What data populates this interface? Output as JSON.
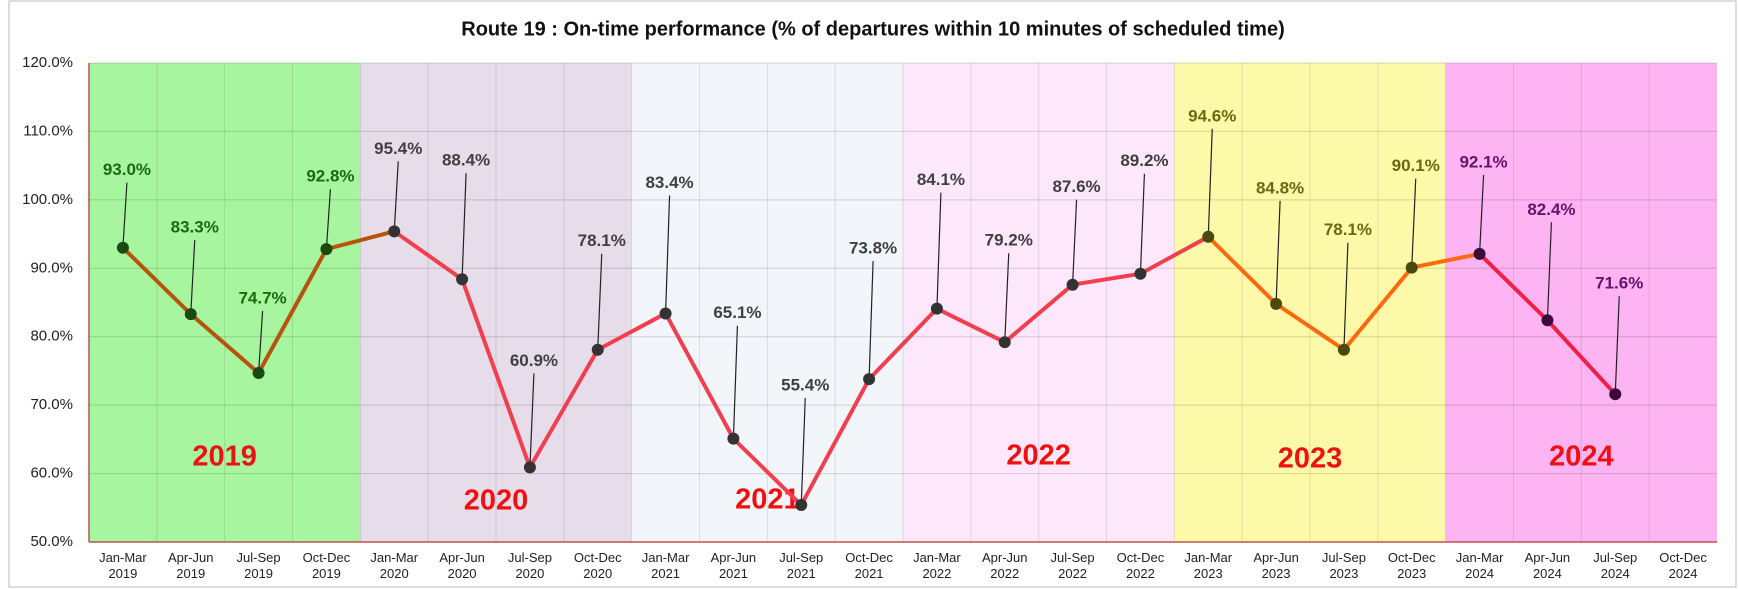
{
  "chart_data": {
    "type": "line",
    "title": "Route 19 : On-time performance (% of departures within 10 minutes of scheduled time)",
    "categories": [
      "Jan-Mar 2019",
      "Apr-Jun 2019",
      "Jul-Sep 2019",
      "Oct-Dec 2019",
      "Jan-Mar 2020",
      "Apr-Jun 2020",
      "Jul-Sep 2020",
      "Oct-Dec 2020",
      "Jan-Mar 2021",
      "Apr-Jun 2021",
      "Jul-Sep 2021",
      "Oct-Dec 2021",
      "Jan-Mar 2022",
      "Apr-Jun 2022",
      "Jul-Sep 2022",
      "Oct-Dec 2022",
      "Jan-Mar 2023",
      "Apr-Jun 2023",
      "Jul-Sep 2023",
      "Oct-Dec 2023",
      "Jan-Mar 2024",
      "Apr-Jun 2024",
      "Jul-Sep 2024",
      "Oct-Dec 2024"
    ],
    "values": [
      93.0,
      83.3,
      74.7,
      92.8,
      95.4,
      88.4,
      60.9,
      78.1,
      83.4,
      65.1,
      55.4,
      73.8,
      84.1,
      79.2,
      87.6,
      89.2,
      94.6,
      84.8,
      78.1,
      90.1,
      92.1,
      82.4,
      71.6,
      null
    ],
    "value_labels": [
      "93.0%",
      "83.3%",
      "74.7%",
      "92.8%",
      "95.4%",
      "88.4%",
      "60.9%",
      "78.1%",
      "83.4%",
      "65.1%",
      "55.4%",
      "73.8%",
      "84.1%",
      "79.2%",
      "87.6%",
      "89.2%",
      "94.6%",
      "84.8%",
      "78.1%",
      "90.1%",
      "92.1%",
      "82.4%",
      "71.6%",
      null
    ],
    "ylim": [
      50,
      120
    ],
    "yticks": [
      {
        "value": 50,
        "label": "50.0%"
      },
      {
        "value": 60,
        "label": "60.0%"
      },
      {
        "value": 70,
        "label": "70.0%"
      },
      {
        "value": 80,
        "label": "80.0%"
      },
      {
        "value": 90,
        "label": "90.0%"
      },
      {
        "value": 100,
        "label": "100.0%"
      },
      {
        "value": 110,
        "label": "110.0%"
      },
      {
        "value": 120,
        "label": "120.0%"
      }
    ],
    "grid": true,
    "year_bands": [
      {
        "label": "2019",
        "fill": "#a8f5a0",
        "line_color": "#b5540c",
        "marker_color": "#1a4a10",
        "label_color": "#1a6a10"
      },
      {
        "label": "2020",
        "fill": "#e6dcea",
        "line_color": "#f04050",
        "marker_color": "#333333",
        "label_color": "#404040"
      },
      {
        "label": "2021",
        "fill": "#f2f5fa",
        "line_color": "#f04050",
        "marker_color": "#333333",
        "label_color": "#404040"
      },
      {
        "label": "2022",
        "fill": "#fde8fb",
        "line_color": "#f04050",
        "marker_color": "#333333",
        "label_color": "#404040"
      },
      {
        "label": "2023",
        "fill": "#fcfaa8",
        "line_color": "#ff6a10",
        "marker_color": "#4a4a10",
        "label_color": "#6a6a10"
      },
      {
        "label": "2024",
        "fill": "#fcb4f2",
        "line_color": "#f0204a",
        "marker_color": "#3a0a3a",
        "label_color": "#6a106a"
      }
    ],
    "year_label_color": "#ee1111"
  }
}
